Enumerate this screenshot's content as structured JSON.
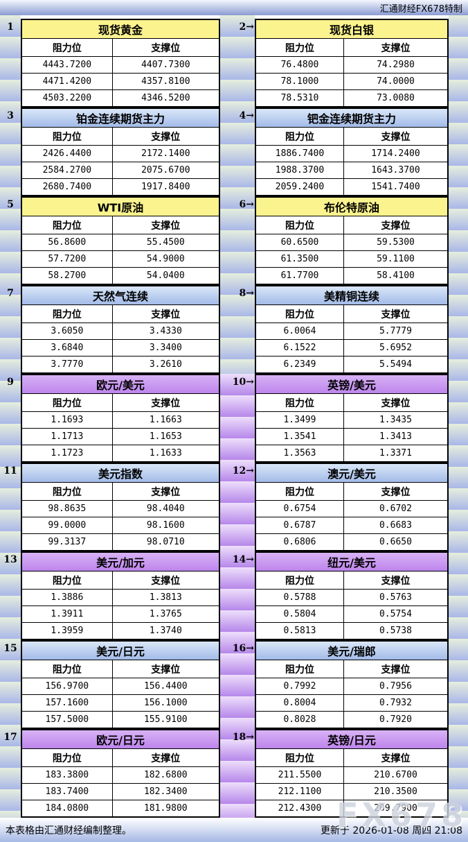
{
  "header": {
    "brand": "汇通财经FX678特制"
  },
  "labels": {
    "resistance": "阻力位",
    "support": "支撑位",
    "arrow": "→"
  },
  "footer": {
    "note": "本表格由汇通财经编制整理。",
    "updated": "更新于 2026-01-08 周四 21:08",
    "watermark": "FX678"
  },
  "colors": {
    "bar_gradient_top": "#f3f6fd",
    "bar_gradient_bottom": "#8b9cd2",
    "theme_yellow": "#fbf38e",
    "theme_blue_top": "#dae7f8",
    "theme_blue_bottom": "#a2bbe8",
    "theme_purple_top": "#d8b2f5",
    "theme_purple_bottom": "#bd85ec",
    "stripe_green_light": "#e6eedd",
    "stripe_blue_dark": "#a9b7e8",
    "stripe_purple_light": "#eedffb",
    "stripe_purple_dark": "#b687ea",
    "border": "#000000",
    "watermark_gray": "#ccd1dd"
  },
  "panels": [
    {
      "index": 1,
      "title": "现货黄金",
      "theme": "yellow",
      "rows": [
        [
          "4443.7200",
          "4407.7300"
        ],
        [
          "4471.4200",
          "4357.8100"
        ],
        [
          "4503.2200",
          "4346.5200"
        ]
      ]
    },
    {
      "index": 2,
      "title": "现货白银",
      "theme": "yellow",
      "rows": [
        [
          "76.4800",
          "74.2980"
        ],
        [
          "78.1000",
          "74.0000"
        ],
        [
          "78.5310",
          "73.0080"
        ]
      ]
    },
    {
      "index": 3,
      "title": "铂金连续期货主力",
      "theme": "blue",
      "rows": [
        [
          "2426.4400",
          "2172.1400"
        ],
        [
          "2584.2700",
          "2075.6700"
        ],
        [
          "2680.7400",
          "1917.8400"
        ]
      ]
    },
    {
      "index": 4,
      "title": "钯金连续期货主力",
      "theme": "blue",
      "rows": [
        [
          "1886.7400",
          "1714.2400"
        ],
        [
          "1988.3700",
          "1643.3700"
        ],
        [
          "2059.2400",
          "1541.7400"
        ]
      ]
    },
    {
      "index": 5,
      "title": "WTI原油",
      "theme": "yellow",
      "rows": [
        [
          "56.8600",
          "55.4500"
        ],
        [
          "57.7200",
          "54.9000"
        ],
        [
          "58.2700",
          "54.0400"
        ]
      ]
    },
    {
      "index": 6,
      "title": "布伦特原油",
      "theme": "yellow",
      "rows": [
        [
          "60.6500",
          "59.5300"
        ],
        [
          "61.3500",
          "59.1100"
        ],
        [
          "61.7700",
          "58.4100"
        ]
      ]
    },
    {
      "index": 7,
      "title": "天然气连续",
      "theme": "blue",
      "rows": [
        [
          "3.6050",
          "3.4330"
        ],
        [
          "3.6840",
          "3.3400"
        ],
        [
          "3.7770",
          "3.2610"
        ]
      ]
    },
    {
      "index": 8,
      "title": "美精铜连续",
      "theme": "blue",
      "rows": [
        [
          "6.0064",
          "5.7779"
        ],
        [
          "6.1522",
          "5.6952"
        ],
        [
          "6.2349",
          "5.5494"
        ]
      ]
    },
    {
      "index": 9,
      "title": "欧元/美元",
      "theme": "purple",
      "rows": [
        [
          "1.1693",
          "1.1663"
        ],
        [
          "1.1713",
          "1.1653"
        ],
        [
          "1.1723",
          "1.1633"
        ]
      ]
    },
    {
      "index": 10,
      "title": "英镑/美元",
      "theme": "purple",
      "rows": [
        [
          "1.3499",
          "1.3435"
        ],
        [
          "1.3541",
          "1.3413"
        ],
        [
          "1.3563",
          "1.3371"
        ]
      ]
    },
    {
      "index": 11,
      "title": "美元指数",
      "theme": "blue",
      "rows": [
        [
          "98.8635",
          "98.4040"
        ],
        [
          "99.0000",
          "98.1600"
        ],
        [
          "99.3137",
          "98.0710"
        ]
      ]
    },
    {
      "index": 12,
      "title": "澳元/美元",
      "theme": "blue",
      "rows": [
        [
          "0.6754",
          "0.6702"
        ],
        [
          "0.6787",
          "0.6683"
        ],
        [
          "0.6806",
          "0.6650"
        ]
      ]
    },
    {
      "index": 13,
      "title": "美元/加元",
      "theme": "purple",
      "rows": [
        [
          "1.3886",
          "1.3813"
        ],
        [
          "1.3911",
          "1.3765"
        ],
        [
          "1.3959",
          "1.3740"
        ]
      ]
    },
    {
      "index": 14,
      "title": "纽元/美元",
      "theme": "purple",
      "rows": [
        [
          "0.5788",
          "0.5763"
        ],
        [
          "0.5804",
          "0.5754"
        ],
        [
          "0.5813",
          "0.5738"
        ]
      ]
    },
    {
      "index": 15,
      "title": "美元/日元",
      "theme": "blue",
      "rows": [
        [
          "156.9700",
          "156.4400"
        ],
        [
          "157.1600",
          "156.1000"
        ],
        [
          "157.5000",
          "155.9100"
        ]
      ]
    },
    {
      "index": 16,
      "title": "美元/瑞郎",
      "theme": "blue",
      "rows": [
        [
          "0.7992",
          "0.7956"
        ],
        [
          "0.8004",
          "0.7932"
        ],
        [
          "0.8028",
          "0.7920"
        ]
      ]
    },
    {
      "index": 17,
      "title": "欧元/日元",
      "theme": "purple",
      "rows": [
        [
          "183.3800",
          "182.6800"
        ],
        [
          "183.7400",
          "182.3400"
        ],
        [
          "184.0800",
          "181.9800"
        ]
      ]
    },
    {
      "index": 18,
      "title": "英镑/日元",
      "theme": "purple",
      "rows": [
        [
          "211.5500",
          "210.6700"
        ],
        [
          "212.1100",
          "210.3500"
        ],
        [
          "212.4300",
          "209.7900"
        ]
      ]
    }
  ]
}
